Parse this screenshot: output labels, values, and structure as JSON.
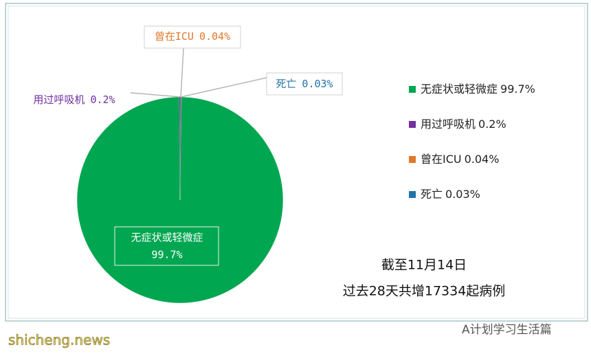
{
  "chart_data": {
    "type": "pie",
    "categories": [
      "无症状或轻微症",
      "用过呼吸机",
      "曾在ICU",
      "死亡"
    ],
    "values": [
      99.7,
      0.2,
      0.04,
      0.03
    ],
    "value_labels": [
      "99.7%",
      "0.2%",
      "0.04%",
      "0.03%"
    ],
    "colors": [
      "#00a650",
      "#7030a0",
      "#e0782a",
      "#2273a8"
    ],
    "legend": "right",
    "annotations": [
      "截至11月14日",
      "过去28天共增17334起病例"
    ],
    "watermarks": [
      "A计划学习生活篇",
      "shicheng.news"
    ]
  }
}
